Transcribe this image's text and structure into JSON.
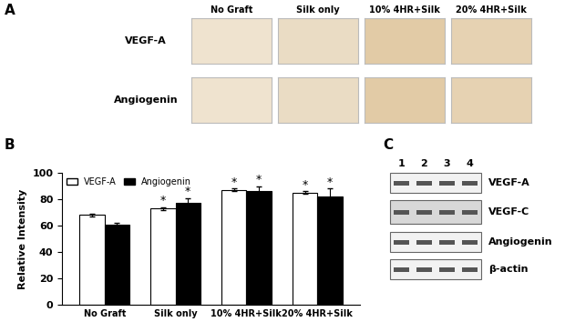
{
  "panel_labels": [
    "A",
    "B",
    "C"
  ],
  "panel_a": {
    "columns": [
      "No Graft",
      "Silk only",
      "10% 4HR+Silk",
      "20% 4HR+Silk"
    ],
    "rows": [
      "VEGF-A",
      "Angiogenin"
    ]
  },
  "chart_data": {
    "type": "bar",
    "categories": [
      "No Graft",
      "Silk only",
      "10% 4HR+Silk",
      "20% 4HR+Silk"
    ],
    "y_label": "Relative Intensity",
    "ylim": [
      0,
      100
    ],
    "yticks": [
      0,
      20,
      40,
      60,
      80,
      100
    ],
    "grid": false,
    "legend": "upper left",
    "series": [
      {
        "name": "VEGF-A",
        "color": "#ffffff",
        "values": [
          68,
          73,
          87,
          85
        ],
        "errors": [
          1,
          1,
          1,
          1
        ],
        "annotations": [
          null,
          "*",
          "*",
          "*"
        ]
      },
      {
        "name": "Angiogenin",
        "color": "#000000",
        "values": [
          61,
          77,
          86,
          82
        ],
        "errors": [
          1,
          4,
          4,
          6
        ],
        "annotations": [
          null,
          "*",
          "*",
          "*"
        ]
      }
    ]
  },
  "panel_c": {
    "lanes": [
      "1",
      "2",
      "3",
      "4"
    ],
    "rows": [
      "VEGF-A",
      "VEGF-C",
      "Angiogenin",
      "β-actin"
    ]
  }
}
